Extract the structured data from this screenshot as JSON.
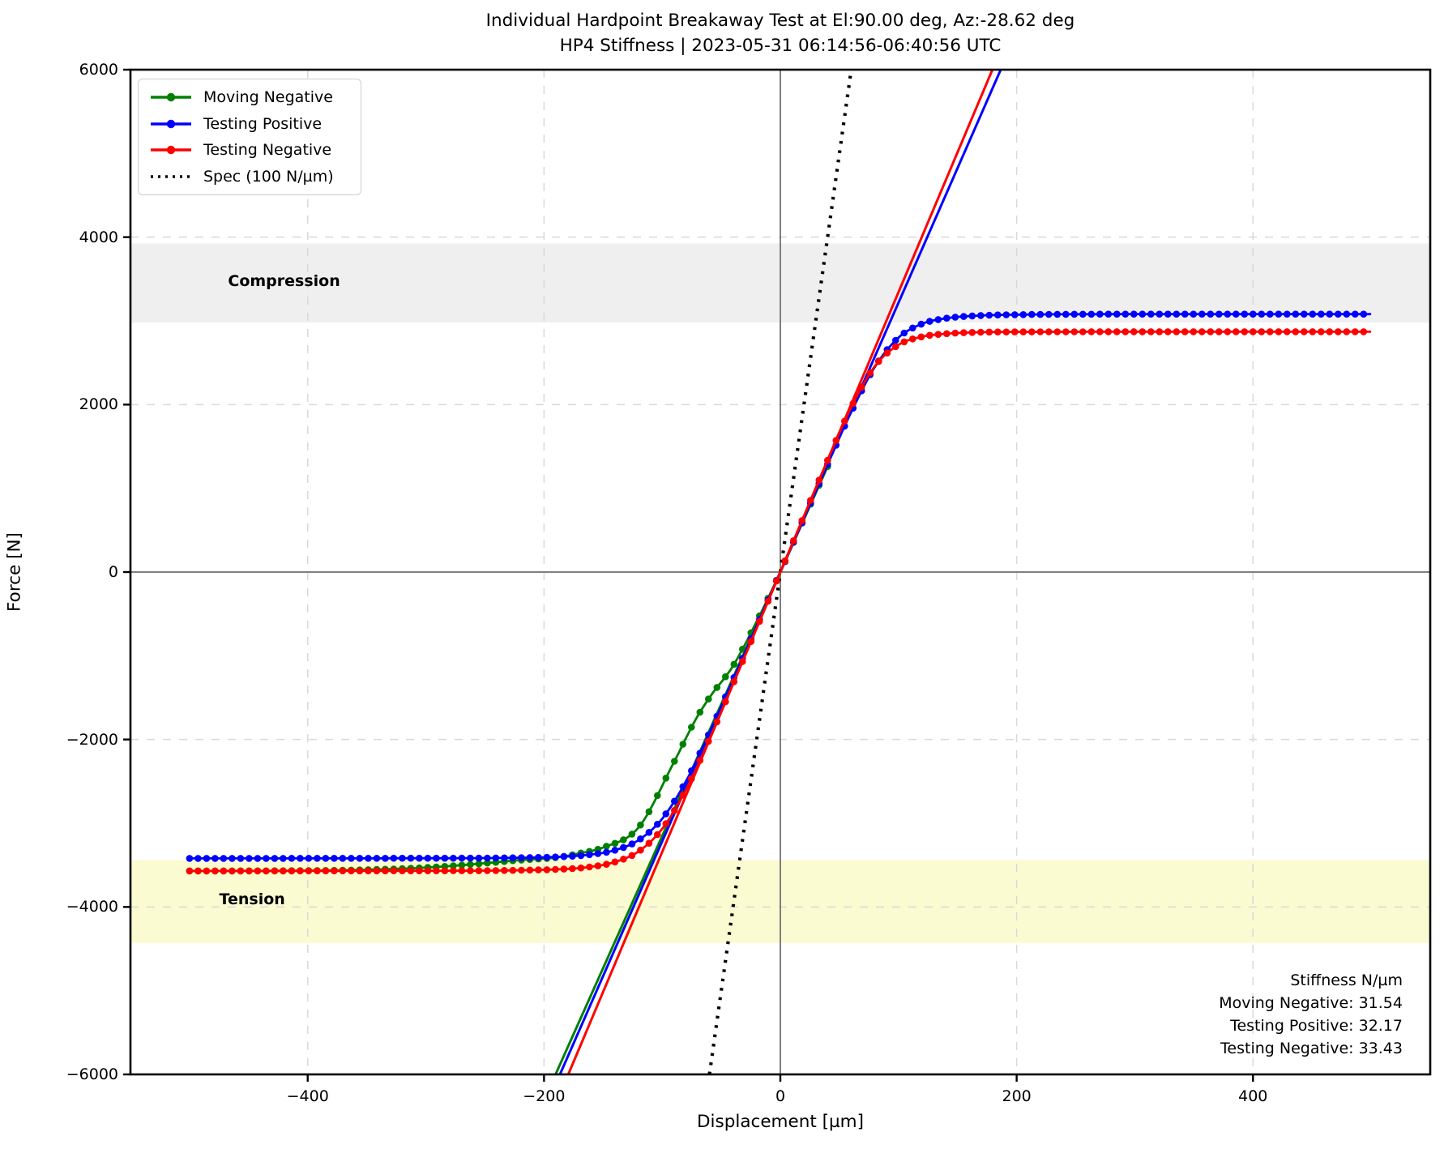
{
  "figure": {
    "title_line1": "Individual Hardpoint Breakaway Test at El:90.00 deg, Az:-28.62 deg",
    "title_line2": "HP4 Stiffness | 2023-05-31 06:14:56-06:40:56 UTC",
    "xlabel": "Displacement [µm]",
    "ylabel": "Force [N]"
  },
  "legend": {
    "position": "upper left",
    "items": [
      {
        "label": "Moving Negative",
        "color": "#008000",
        "style": "line-dot"
      },
      {
        "label": "Testing Positive",
        "color": "#0000ff",
        "style": "line-dot"
      },
      {
        "label": "Testing Negative",
        "color": "#ff0000",
        "style": "line-dot"
      },
      {
        "label": "Spec (100 N/µm)",
        "color": "#000000",
        "style": "dotted"
      }
    ]
  },
  "annotations": {
    "compression_label": "Compression",
    "tension_label": "Tension",
    "stiffness": {
      "title": "Stiffness N/µm",
      "lines": [
        "Moving Negative: 31.54",
        "Testing Positive: 32.17",
        "Testing Negative: 33.43"
      ]
    }
  },
  "chart_data": {
    "type": "line",
    "title": "Individual Hardpoint Breakaway Test at El:90.00 deg, Az:-28.62 deg — HP4 Stiffness | 2023-05-31 06:14:56-06:40:56 UTC",
    "xlabel": "Displacement [µm]",
    "ylabel": "Force [N]",
    "xlim": [
      -550,
      550
    ],
    "ylim": [
      -6000,
      6000
    ],
    "grid": true,
    "x_ticks": [
      {
        "value": -400,
        "label": "−400"
      },
      {
        "value": -200,
        "label": "−200"
      },
      {
        "value": 0,
        "label": "0"
      },
      {
        "value": 200,
        "label": "200"
      },
      {
        "value": 400,
        "label": "400"
      }
    ],
    "y_ticks": [
      {
        "value": -6000,
        "label": "−6000"
      },
      {
        "value": -4000,
        "label": "−4000"
      },
      {
        "value": -2000,
        "label": "−2000"
      },
      {
        "value": 0,
        "label": "0"
      },
      {
        "value": 2000,
        "label": "2000"
      },
      {
        "value": 4000,
        "label": "4000"
      },
      {
        "value": 6000,
        "label": "6000"
      }
    ],
    "bands": [
      {
        "name": "compression",
        "y_from": 2980,
        "y_to": 3925,
        "color": "#efefef",
        "label": "Compression",
        "label_at": [
          -420,
          3470
        ]
      },
      {
        "name": "tension",
        "y_from": -4430,
        "y_to": -3440,
        "color": "#fbfbd2",
        "label": "Tension",
        "label_at": [
          -447,
          -3905
        ]
      }
    ],
    "zero_lines": {
      "color": "#7f7f7f"
    },
    "grid_color": "#d9d9d9",
    "spec_line": {
      "label": "Spec (100 N/µm)",
      "slope_N_per_um": 100,
      "x_range": [
        -60,
        60
      ],
      "color": "#000000"
    },
    "series": [
      {
        "name": "Moving Negative",
        "color": "#008000",
        "stiffness_N_per_um": 31.54,
        "fit_line_x_range": [
          -190.25,
          40
        ],
        "x_range": [
          -500,
          40
        ],
        "marker_step_um": 7.2,
        "plateau_neg_N": -3570,
        "points": [
          [
            -500,
            -3570
          ],
          [
            -420,
            -3568
          ],
          [
            -350,
            -3556
          ],
          [
            -300,
            -3530
          ],
          [
            -260,
            -3490
          ],
          [
            -220,
            -3440
          ],
          [
            -190,
            -3410
          ],
          [
            -170,
            -3360
          ],
          [
            -150,
            -3290
          ],
          [
            -120,
            -3050
          ],
          [
            -90,
            -2270
          ],
          [
            -72,
            -1770
          ],
          [
            -60,
            -1500
          ],
          [
            -40,
            -1120
          ],
          [
            -20,
            -590
          ],
          [
            0,
            0
          ],
          [
            20,
            635
          ],
          [
            40,
            1261
          ]
        ]
      },
      {
        "name": "Testing Positive",
        "color": "#0000ff",
        "stiffness_N_per_um": 32.17,
        "fit_line_x_range": [
          -186.51,
          186.51
        ],
        "x_range": [
          -500,
          500
        ],
        "marker_step_um": 7.2,
        "plateau_pos_N": 3080,
        "plateau_neg_N": -3420,
        "points": [
          [
            -500,
            -3420
          ],
          [
            -300,
            -3418
          ],
          [
            -200,
            -3407
          ],
          [
            -160,
            -3373
          ],
          [
            -140,
            -3322
          ],
          [
            -120,
            -3202
          ],
          [
            -100,
            -2947
          ],
          [
            -80,
            -2503
          ],
          [
            -60,
            -1920
          ],
          [
            -40,
            -1286
          ],
          [
            -20,
            -643
          ],
          [
            0,
            0
          ],
          [
            20,
            643
          ],
          [
            40,
            1286
          ],
          [
            60,
            1911
          ],
          [
            80,
            2451
          ],
          [
            100,
            2800
          ],
          [
            120,
            2965
          ],
          [
            140,
            3030
          ],
          [
            160,
            3057
          ],
          [
            200,
            3074
          ],
          [
            300,
            3080
          ],
          [
            500,
            3080
          ]
        ]
      },
      {
        "name": "Testing Negative",
        "color": "#ff0000",
        "stiffness_N_per_um": 33.43,
        "fit_line_x_range": [
          -179.48,
          179.48
        ],
        "x_range": [
          -500,
          500
        ],
        "marker_step_um": 7.2,
        "plateau_pos_N": 2870,
        "plateau_neg_N": -3570,
        "points": [
          [
            -500,
            -3570
          ],
          [
            -300,
            -3568
          ],
          [
            -200,
            -3556
          ],
          [
            -160,
            -3520
          ],
          [
            -140,
            -3463
          ],
          [
            -120,
            -3337
          ],
          [
            -100,
            -3067
          ],
          [
            -80,
            -2603
          ],
          [
            -60,
            -1996
          ],
          [
            -40,
            -1336
          ],
          [
            -20,
            -669
          ],
          [
            0,
            0
          ],
          [
            20,
            669
          ],
          [
            40,
            1335
          ],
          [
            60,
            1969
          ],
          [
            80,
            2459
          ],
          [
            100,
            2714
          ],
          [
            120,
            2811
          ],
          [
            140,
            2846
          ],
          [
            160,
            2861
          ],
          [
            200,
            2868
          ],
          [
            300,
            2870
          ],
          [
            500,
            2870
          ]
        ]
      }
    ]
  }
}
